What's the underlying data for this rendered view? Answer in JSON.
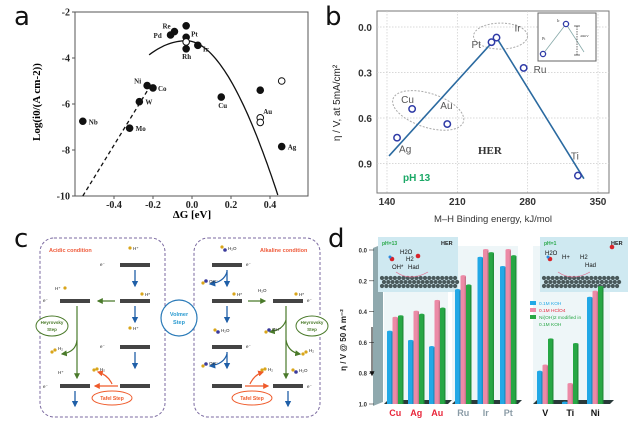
{
  "panels": {
    "a": "a",
    "b": "b",
    "c": "c",
    "d": "d"
  },
  "chart_data": [
    {
      "id": "a",
      "type": "scatter",
      "title": "",
      "xlabel": "ΔG [eV]",
      "ylabel": "Log(i0/(A cm-2))",
      "xlim": [
        -0.6,
        0.6
      ],
      "ylim": [
        -10,
        -2
      ],
      "xticks": [
        "-0.4",
        "-0.2",
        "0.0",
        "0.2",
        "0.4"
      ],
      "xtick_values": [
        -0.4,
        -0.2,
        0.0,
        0.2,
        0.4
      ],
      "yticks": [
        "-2",
        "-4",
        "-6",
        "-8",
        "-10"
      ],
      "ytick_values": [
        -2,
        -4,
        -6,
        -8,
        -10
      ],
      "points": [
        {
          "label": "Re",
          "x": -0.09,
          "y": -2.85,
          "filled": true
        },
        {
          "label": "Pd",
          "x": -0.11,
          "y": -3.0,
          "filled": true
        },
        {
          "label": "",
          "x": -0.03,
          "y": -2.6,
          "filled": true
        },
        {
          "label": "Pt",
          "x": -0.03,
          "y": -3.1,
          "filled": true
        },
        {
          "label": "",
          "x": -0.03,
          "y": -3.3,
          "filled": false
        },
        {
          "label": "Rh",
          "x": -0.03,
          "y": -3.6,
          "filled": true
        },
        {
          "label": "Ir",
          "x": 0.03,
          "y": -3.45,
          "filled": true
        },
        {
          "label": "Ni",
          "x": -0.23,
          "y": -5.2,
          "filled": true
        },
        {
          "label": "Co",
          "x": -0.2,
          "y": -5.3,
          "filled": true
        },
        {
          "label": "W",
          "x": -0.27,
          "y": -5.9,
          "filled": true
        },
        {
          "label": "Mo",
          "x": -0.32,
          "y": -7.05,
          "filled": true
        },
        {
          "label": "Nb",
          "x": -0.56,
          "y": -6.75,
          "filled": true
        },
        {
          "label": "Cu",
          "x": 0.15,
          "y": -5.7,
          "filled": true
        },
        {
          "label": "",
          "x": 0.35,
          "y": -5.4,
          "filled": true
        },
        {
          "label": "",
          "x": 0.46,
          "y": -5.0,
          "filled": false
        },
        {
          "label": "Au",
          "x": 0.35,
          "y": -6.6,
          "filled": false
        },
        {
          "label": "",
          "x": 0.35,
          "y": -6.8,
          "filled": false
        },
        {
          "label": "Ag",
          "x": 0.46,
          "y": -7.85,
          "filled": true
        }
      ],
      "volcano_curve": {
        "peak": {
          "x": -0.03,
          "y": -3.25
        },
        "left_dashed_end": {
          "x": -0.56,
          "y": -10
        },
        "right_solid_end": {
          "x": 0.44,
          "y": -10
        }
      }
    },
    {
      "id": "b",
      "type": "scatter",
      "title": "",
      "xlabel": "M–H Binding energy, kJ/mol",
      "ylabel": "η / V, at 5mA/cm²",
      "xlim": [
        130,
        360
      ],
      "ylim": [
        1.05,
        -0.1
      ],
      "xticks": [
        "140",
        "210",
        "280",
        "350"
      ],
      "xtick_values": [
        140,
        210,
        280,
        350
      ],
      "yticks": [
        "0.0",
        "0.3",
        "0.6",
        "0.9"
      ],
      "ytick_values": [
        0.0,
        0.3,
        0.6,
        0.9
      ],
      "points": [
        {
          "label": "Ag",
          "x": 150,
          "y": 0.73
        },
        {
          "label": "Cu",
          "x": 165,
          "y": 0.54
        },
        {
          "label": "Au",
          "x": 200,
          "y": 0.64
        },
        {
          "label": "Pt",
          "x": 244,
          "y": 0.1
        },
        {
          "label": "Ir",
          "x": 249,
          "y": 0.07
        },
        {
          "label": "Ru",
          "x": 276,
          "y": 0.27
        },
        {
          "label": "Ti",
          "x": 330,
          "y": 0.98
        }
      ],
      "fit_line": [
        {
          "x": 142,
          "y": 0.85
        },
        {
          "x": 249,
          "y": 0.07
        },
        {
          "x": 336,
          "y": 1.0
        }
      ],
      "annotations": [
        "HER",
        "pH  13"
      ],
      "inset_labels": {
        "left": "Pt",
        "peak": "Ir",
        "bar": "40mV"
      }
    },
    {
      "id": "d",
      "type": "bar",
      "title": "",
      "ylabel": "η / V @ 50 A m⁻²",
      "ylim": [
        1.0,
        0.0
      ],
      "yticks": [
        "0.0",
        "0.2",
        "0.4",
        "0.6",
        "0.8",
        "1.0"
      ],
      "ytick_values": [
        0.0,
        0.2,
        0.4,
        0.6,
        0.8,
        1.0
      ],
      "categories": [
        "Cu",
        "Ag",
        "Au",
        "Ru",
        "Ir",
        "Pt",
        "V",
        "Ti",
        "Ni"
      ],
      "category_colors": [
        "#e8253a",
        "#e8253a",
        "#e8253a",
        "#8a9ba6",
        "#8a9ba6",
        "#8a9ba6",
        "#111111",
        "#111111",
        "#111111"
      ],
      "groups": [
        [
          "Cu",
          "Ag",
          "Au"
        ],
        [
          "Ru",
          "Ir",
          "Pt"
        ],
        [
          "V",
          "Ti",
          "Ni"
        ]
      ],
      "series": [
        {
          "name": "0.1M KOH",
          "color": "#22a8e6",
          "values": [
            0.53,
            0.59,
            0.63,
            0.26,
            0.05,
            0.11,
            0.79,
            0.99,
            0.31
          ]
        },
        {
          "name": "0.1M HClO4",
          "color": "#ec8aa6",
          "values": [
            0.44,
            0.4,
            0.33,
            0.17,
            0.0,
            0.0,
            0.75,
            0.87,
            0.27
          ]
        },
        {
          "name": "Ni(OH)2 modified in 0.1M KOH",
          "color": "#27a745",
          "values": [
            0.43,
            0.42,
            0.38,
            0.23,
            0.02,
            0.04,
            0.58,
            0.61,
            0.24
          ]
        }
      ],
      "legend": [
        "0.1M KOH",
        "0.1M HClO4",
        "Ni(OH)2 modified in",
        "0.1M KOH"
      ],
      "insets": [
        {
          "ph": "pH=13",
          "tag": "HER",
          "labels": [
            "H2O",
            "H2",
            "OH*",
            "Had"
          ]
        },
        {
          "ph": "pH=1",
          "tag": "HER",
          "labels": [
            "H2O",
            "H+",
            "H2",
            "Had"
          ]
        }
      ]
    }
  ],
  "diagram_c": {
    "left_title": "Acidic condition",
    "right_title": "Alkaline condition",
    "center_label_1": "Volmer",
    "center_label_2": "Step",
    "heyrovsky_1": "Heyrovsky",
    "heyrovsky_2": "Step",
    "tafel": "Tafel Step",
    "species": {
      "hplus": "H⁺",
      "hads": "H*",
      "h2": "H₂",
      "h2o": "H₂O",
      "oh": "OH⁻",
      "electron": "e⁻"
    }
  }
}
